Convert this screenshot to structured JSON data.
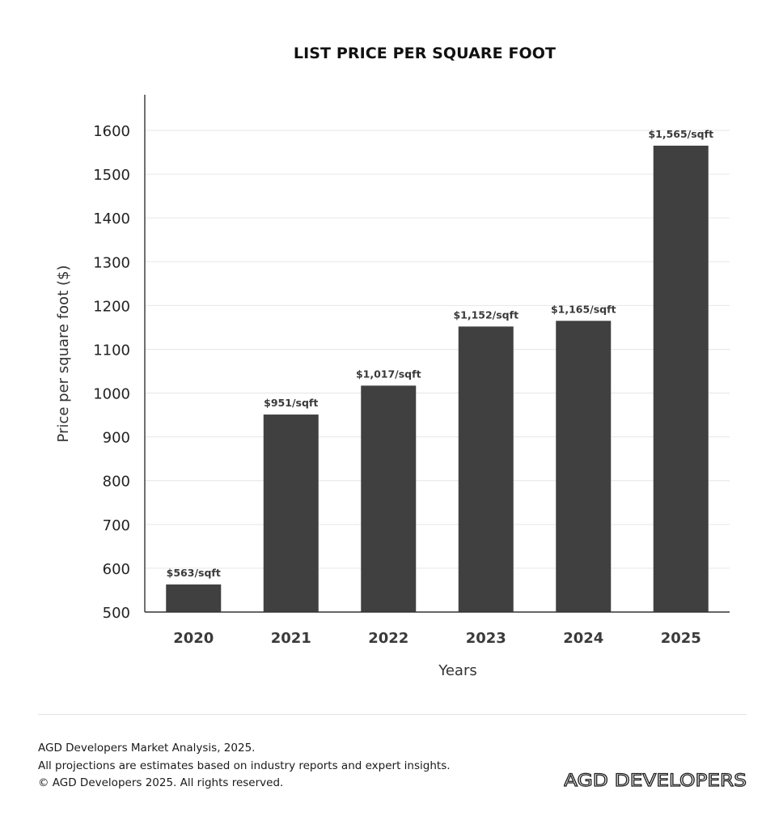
{
  "footer": {
    "line1": "AGD Developers Market Analysis, 2025.",
    "line2": "All projections are estimates based on industry reports and expert insights.",
    "line3": "© AGD Developers 2025. All rights reserved."
  },
  "brand": {
    "logo_text": "AGD DEVELOPERS"
  },
  "colors": {
    "bar": "#404040",
    "grid": "#e6e6e6",
    "axis": "#333333",
    "text": "#222222",
    "label": "#3a3a3a"
  },
  "chart_data": {
    "type": "bar",
    "title": "LIST PRICE PER SQUARE FOOT",
    "xlabel": "Years",
    "ylabel": "Price per square foot ($)",
    "categories": [
      "2020",
      "2021",
      "2022",
      "2023",
      "2024",
      "2025"
    ],
    "values": [
      563,
      951,
      1017,
      1152,
      1165,
      1565
    ],
    "data_labels": [
      "$563/sqft",
      "$951/sqft",
      "$1,017/sqft",
      "$1,152/sqft",
      "$1,165/sqft",
      "$1,565/sqft"
    ],
    "ylim": [
      500,
      1680
    ],
    "yticks": [
      500,
      600,
      700,
      800,
      900,
      1000,
      1100,
      1200,
      1300,
      1400,
      1500,
      1600
    ],
    "grid": true,
    "legend": "none"
  }
}
